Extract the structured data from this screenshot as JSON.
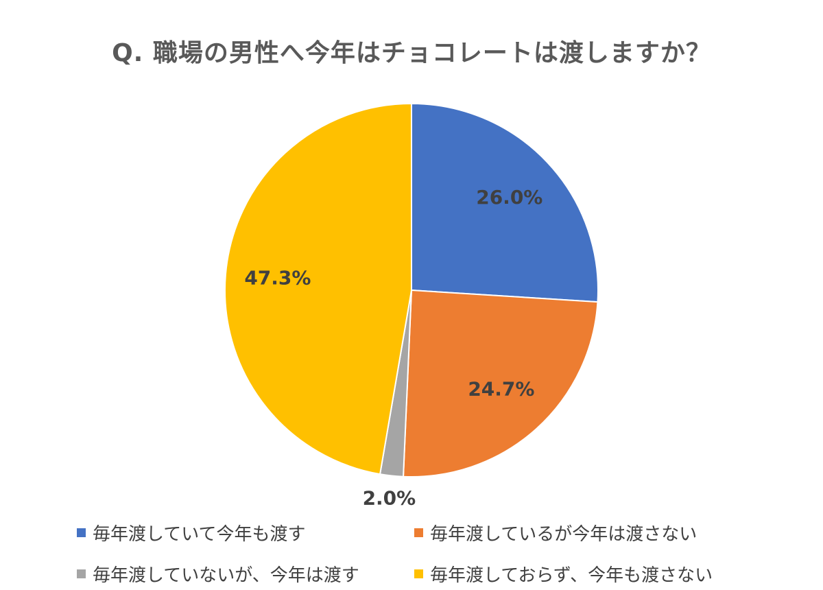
{
  "chart_data": {
    "type": "pie",
    "title": "Q. 職場の男性へ今年はチョコレートは渡しますか？",
    "slices": [
      {
        "label": "毎年渡していて今年も渡す",
        "value": 26.0,
        "value_label": "26.0%",
        "color": "#4472C4"
      },
      {
        "label": "毎年渡しているが今年は渡さない",
        "value": 24.7,
        "value_label": "24.7%",
        "color": "#ED7D31"
      },
      {
        "label": "毎年渡していないが、今年は渡す",
        "value": 2.0,
        "value_label": "2.0%",
        "color": "#A5A5A5"
      },
      {
        "label": "毎年渡しておらず、今年も渡さない",
        "value": 47.3,
        "value_label": "47.3%",
        "color": "#FFC000"
      }
    ],
    "start_angle": "12 o'clock",
    "direction": "clockwise",
    "legend_position": "bottom"
  }
}
